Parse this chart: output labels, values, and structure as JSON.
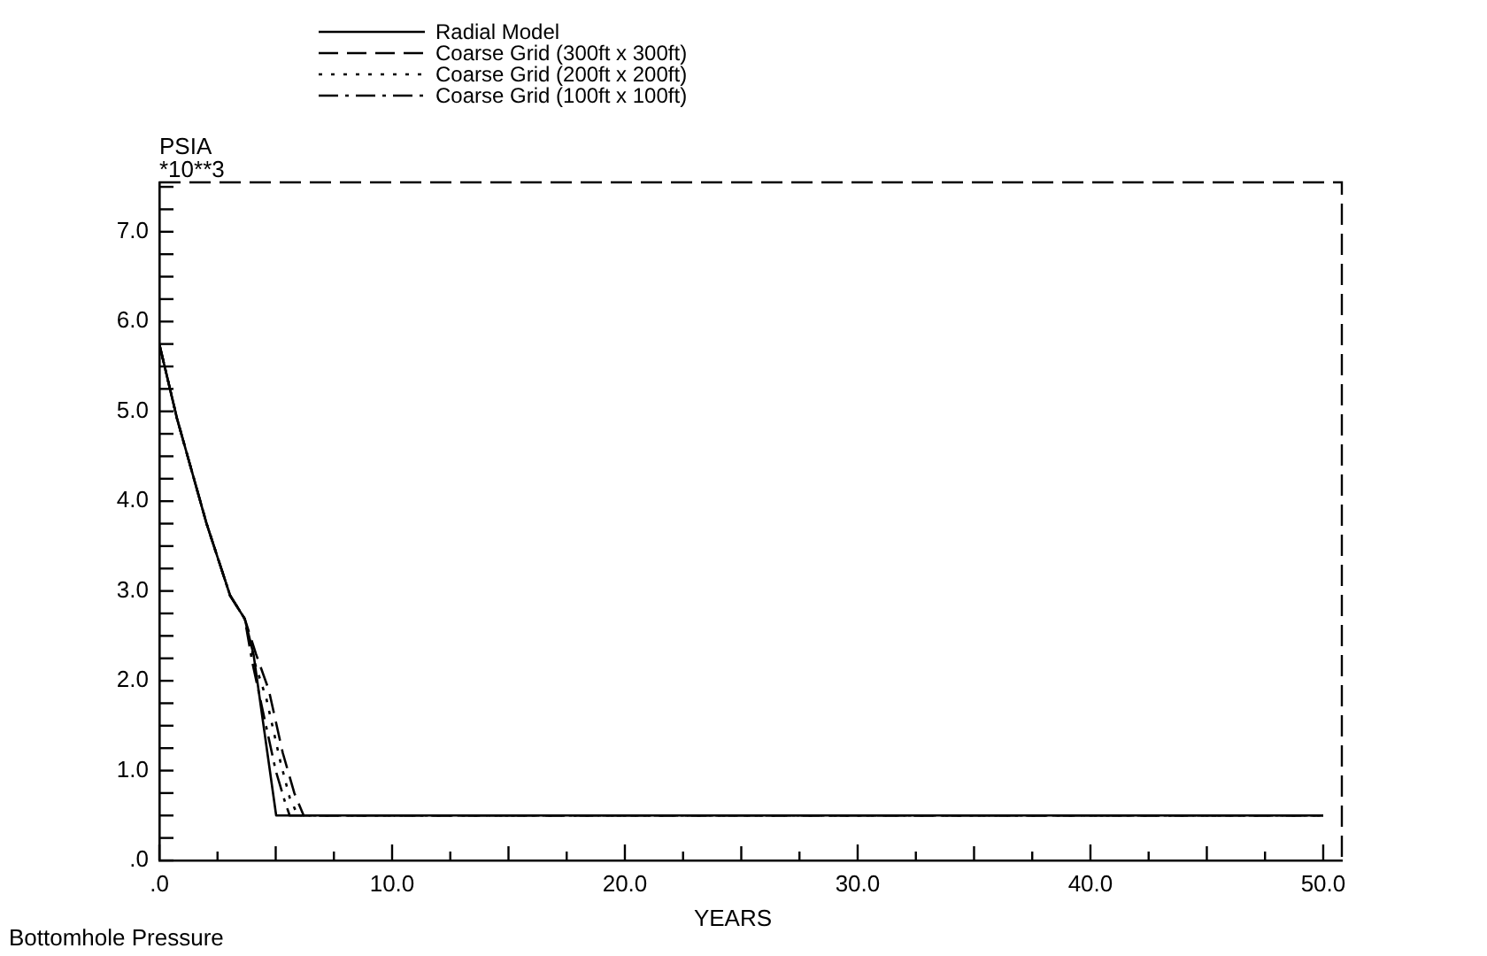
{
  "chart_data": {
    "type": "line",
    "title": "Bottomhole Pressure",
    "xlabel": "YEARS",
    "ylabel": "PSIA",
    "annotations": [
      "*10**3"
    ],
    "legend": "top",
    "grid": false,
    "marker": "none",
    "xlim": [
      0,
      50.8
    ],
    "ylim": [
      0,
      7.55
    ],
    "xticks": [
      {
        "value": 0,
        "label": ".0"
      },
      {
        "value": 2.5,
        "label": null
      },
      {
        "value": 5,
        "label": null
      },
      {
        "value": 7.5,
        "label": null
      },
      {
        "value": 10,
        "label": "10.0"
      },
      {
        "value": 12.5,
        "label": null
      },
      {
        "value": 15,
        "label": null
      },
      {
        "value": 17.5,
        "label": null
      },
      {
        "value": 20,
        "label": "20.0"
      },
      {
        "value": 22.5,
        "label": null
      },
      {
        "value": 25,
        "label": null
      },
      {
        "value": 27.5,
        "label": null
      },
      {
        "value": 30,
        "label": "30.0"
      },
      {
        "value": 32.5,
        "label": null
      },
      {
        "value": 35,
        "label": null
      },
      {
        "value": 37.5,
        "label": null
      },
      {
        "value": 40,
        "label": "40.0"
      },
      {
        "value": 42.5,
        "label": null
      },
      {
        "value": 45,
        "label": null
      },
      {
        "value": 47.5,
        "label": null
      },
      {
        "value": 50,
        "label": "50.0"
      }
    ],
    "yticks": [
      {
        "value": 0,
        "label": ".0"
      },
      {
        "value": 0.25,
        "label": null
      },
      {
        "value": 0.5,
        "label": null
      },
      {
        "value": 0.75,
        "label": null
      },
      {
        "value": 1,
        "label": "1.0"
      },
      {
        "value": 1.25,
        "label": null
      },
      {
        "value": 1.5,
        "label": null
      },
      {
        "value": 1.75,
        "label": null
      },
      {
        "value": 2,
        "label": "2.0"
      },
      {
        "value": 2.25,
        "label": null
      },
      {
        "value": 2.5,
        "label": null
      },
      {
        "value": 2.75,
        "label": null
      },
      {
        "value": 3,
        "label": "3.0"
      },
      {
        "value": 3.25,
        "label": null
      },
      {
        "value": 3.5,
        "label": null
      },
      {
        "value": 3.75,
        "label": null
      },
      {
        "value": 4,
        "label": "4.0"
      },
      {
        "value": 4.25,
        "label": null
      },
      {
        "value": 4.5,
        "label": null
      },
      {
        "value": 4.75,
        "label": null
      },
      {
        "value": 5,
        "label": "5.0"
      },
      {
        "value": 5.25,
        "label": null
      },
      {
        "value": 5.5,
        "label": null
      },
      {
        "value": 5.75,
        "label": null
      },
      {
        "value": 6,
        "label": "6.0"
      },
      {
        "value": 6.25,
        "label": null
      },
      {
        "value": 6.5,
        "label": null
      },
      {
        "value": 6.75,
        "label": null
      },
      {
        "value": 7,
        "label": "7.0"
      },
      {
        "value": 7.25,
        "label": null
      },
      {
        "value": 7.5,
        "label": null
      }
    ],
    "series": [
      {
        "name": "Radial Model",
        "color": "#000000",
        "line_style": "solid",
        "x": [
          0,
          0.76,
          2.03,
          3.04,
          3.67,
          4.05,
          5.02,
          50
        ],
        "values": [
          5.75,
          4.92,
          3.75,
          2.95,
          2.69,
          2.29,
          0.5,
          0.5
        ]
      },
      {
        "name": "Coarse Grid (300ft x 300ft)",
        "color": "#000000",
        "line_style": "dashed",
        "x": [
          0,
          0.76,
          2.03,
          3.04,
          3.67,
          4.15,
          4.7,
          5.3,
          5.8,
          6.2,
          50
        ],
        "values": [
          5.75,
          4.92,
          3.75,
          2.95,
          2.69,
          2.3,
          1.9,
          1.2,
          0.75,
          0.5,
          0.5
        ]
      },
      {
        "name": "Coarse Grid (200ft x 200ft)",
        "color": "#000000",
        "line_style": "dotted",
        "x": [
          0,
          0.76,
          2.03,
          3.04,
          3.67,
          4.1,
          4.6,
          5.2,
          5.6,
          5.95,
          50
        ],
        "values": [
          5.75,
          4.92,
          3.75,
          2.95,
          2.69,
          2.2,
          1.8,
          1.1,
          0.7,
          0.5,
          0.5
        ]
      },
      {
        "name": "Coarse Grid (100ft x 100ft)",
        "color": "#000000",
        "line_style": "dashdot",
        "x": [
          0,
          0.76,
          2.03,
          3.04,
          3.67,
          4.0,
          4.5,
          5.0,
          5.4,
          5.6,
          50
        ],
        "values": [
          5.75,
          4.92,
          3.75,
          2.95,
          2.69,
          2.2,
          1.6,
          1.0,
          0.65,
          0.5,
          0.5
        ]
      }
    ]
  }
}
